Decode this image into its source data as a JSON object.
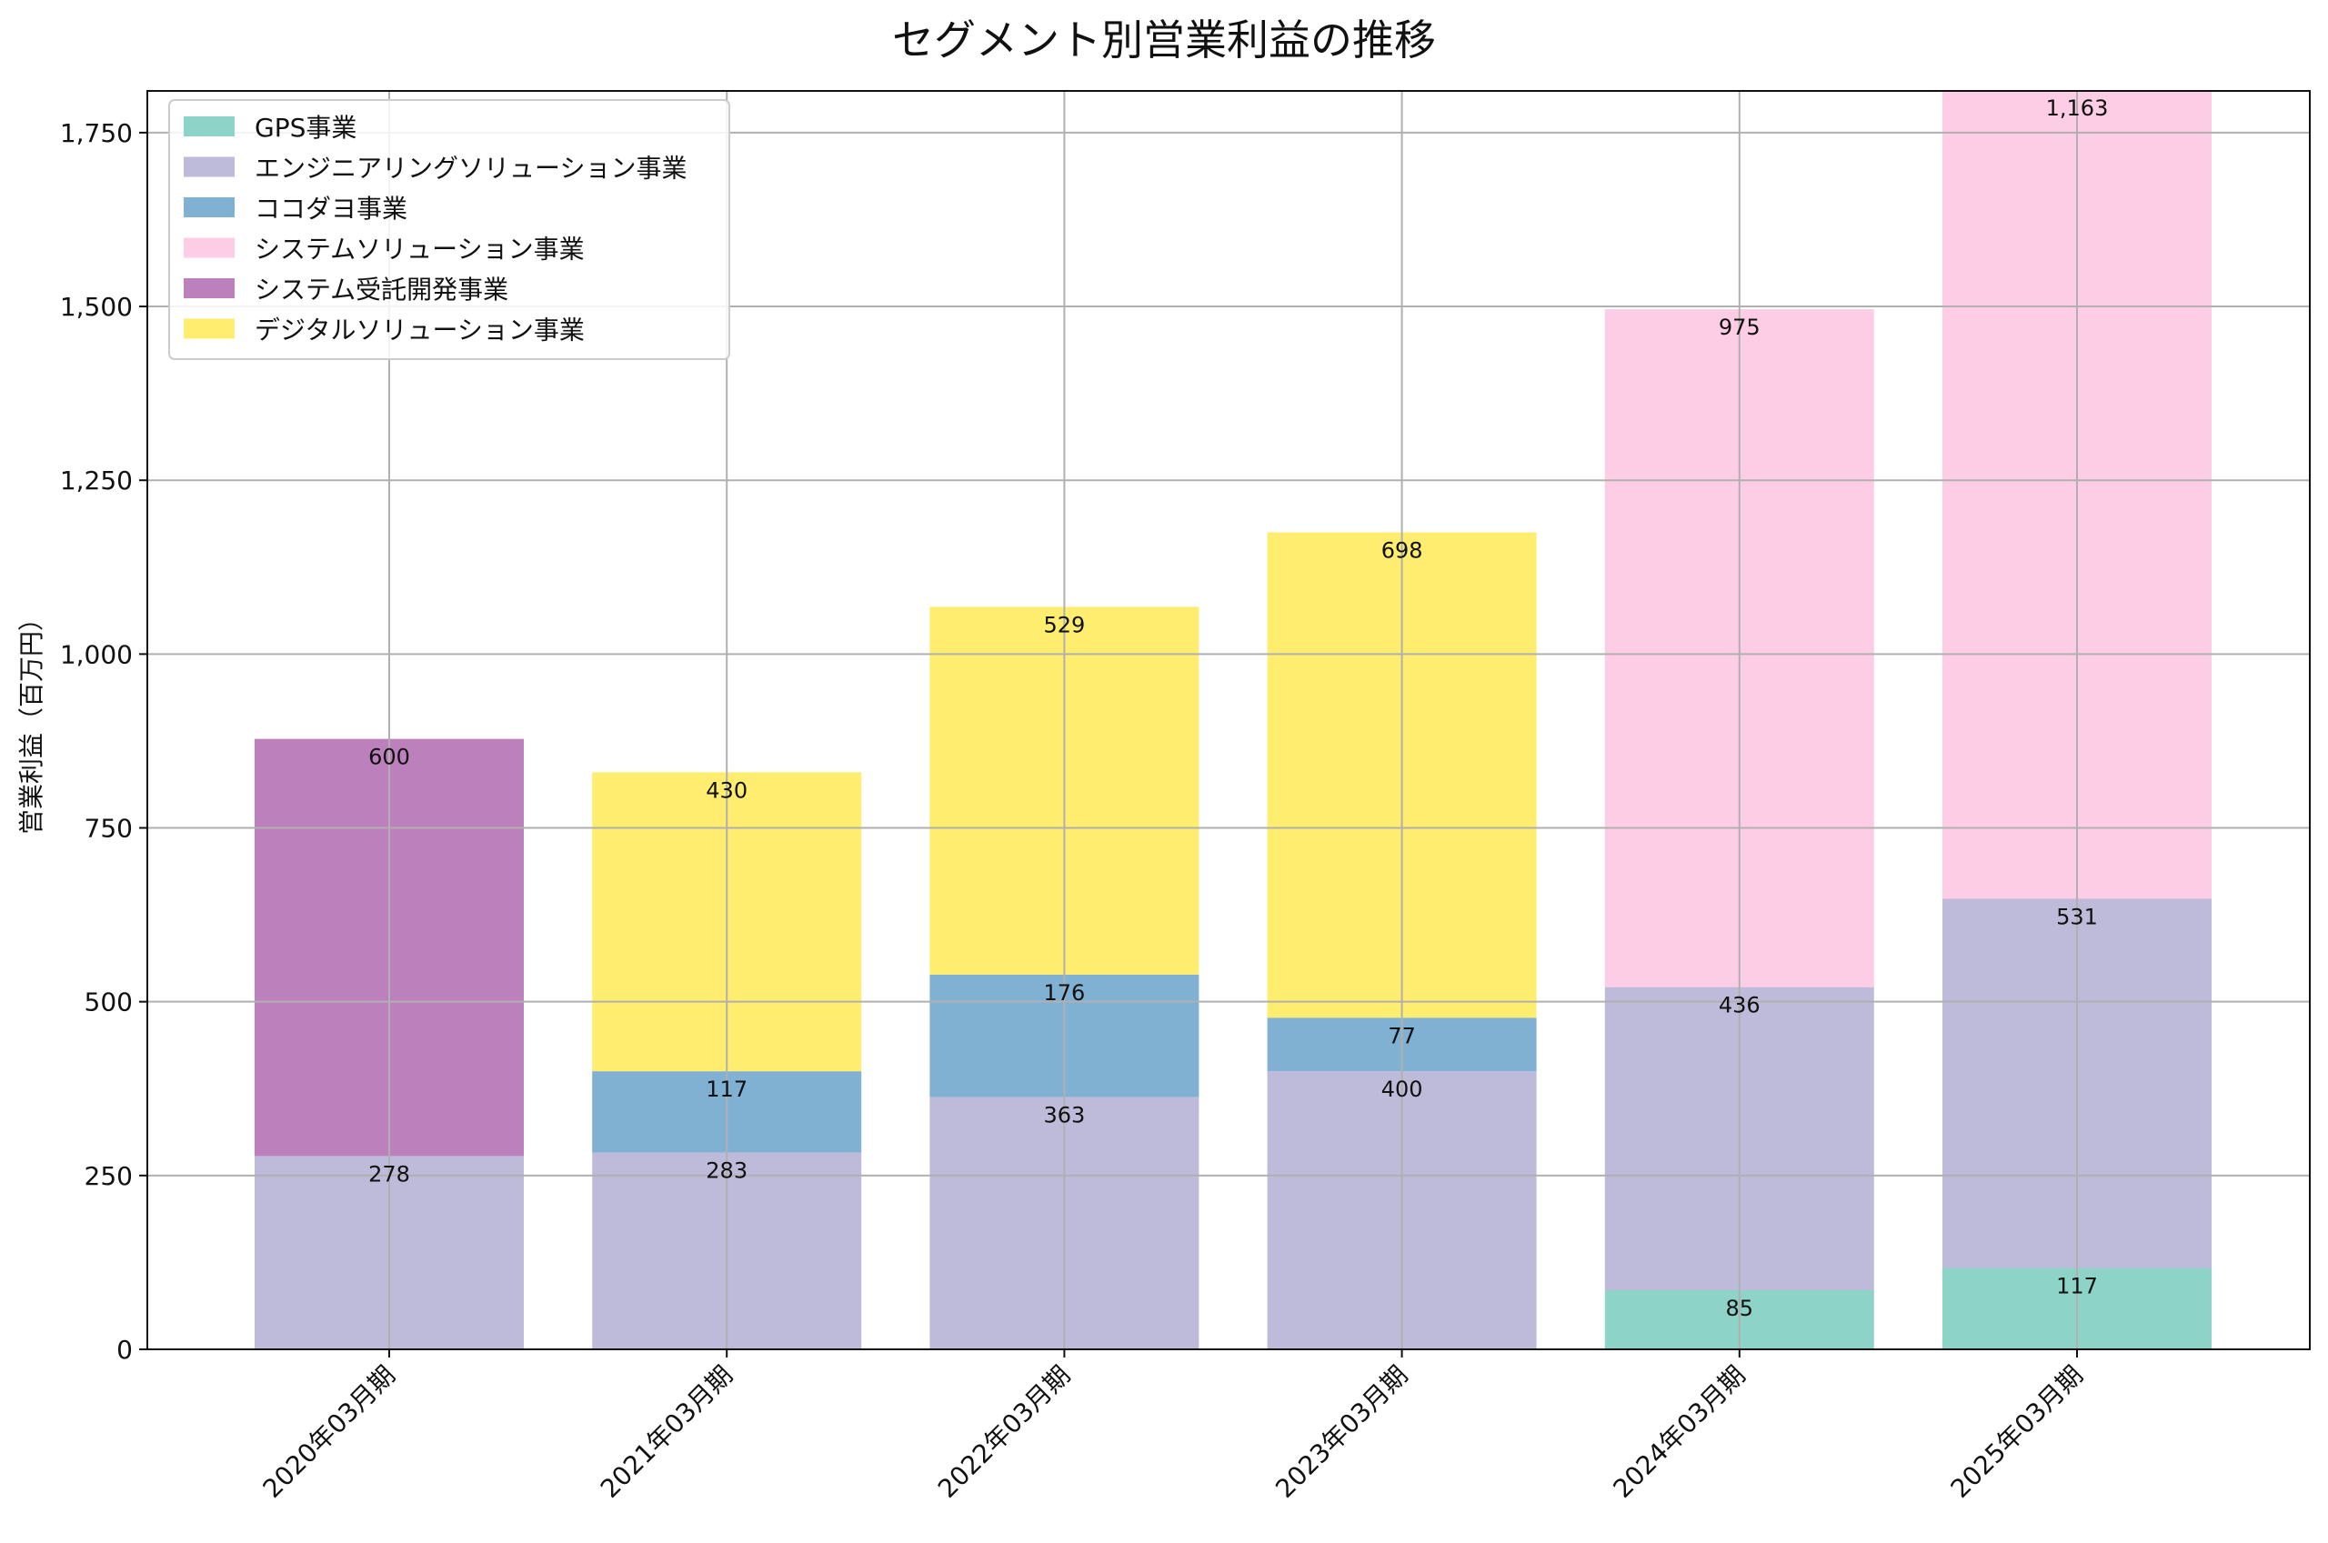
{
  "chart_data": {
    "type": "bar",
    "stacked": true,
    "title": "セグメント別営業利益の推移",
    "xlabel": "",
    "ylabel": "営業利益（百万円）",
    "ylim": [
      0,
      1810
    ],
    "yticks": [
      0,
      250,
      500,
      750,
      1000,
      1250,
      1500,
      1750
    ],
    "ytick_labels": [
      "0",
      "250",
      "500",
      "750",
      "1,000",
      "1,250",
      "1,500",
      "1,750"
    ],
    "grid": true,
    "legend_position": "top-left",
    "categories": [
      "2020年03月期",
      "2021年03月期",
      "2022年03月期",
      "2023年03月期",
      "2024年03月期",
      "2025年03月期"
    ],
    "series": [
      {
        "name": "GPS事業",
        "color": "#8dd3c7",
        "values": [
          0,
          0,
          0,
          0,
          85,
          117
        ]
      },
      {
        "name": "エンジニアリングソリューション事業",
        "color": "#bebada",
        "values": [
          278,
          283,
          363,
          400,
          436,
          531
        ]
      },
      {
        "name": "ココダヨ事業",
        "color": "#80b1d3",
        "values": [
          0,
          117,
          176,
          77,
          0,
          0
        ]
      },
      {
        "name": "システムソリューション事業",
        "color": "#fccde5",
        "values": [
          0,
          0,
          0,
          0,
          975,
          1163
        ]
      },
      {
        "name": "システム受託開発事業",
        "color": "#bc80bd",
        "values": [
          600,
          0,
          0,
          0,
          0,
          0
        ]
      },
      {
        "name": "デジタルソリューション事業",
        "color": "#ffed6f",
        "values": [
          0,
          430,
          529,
          698,
          0,
          0
        ]
      }
    ]
  }
}
